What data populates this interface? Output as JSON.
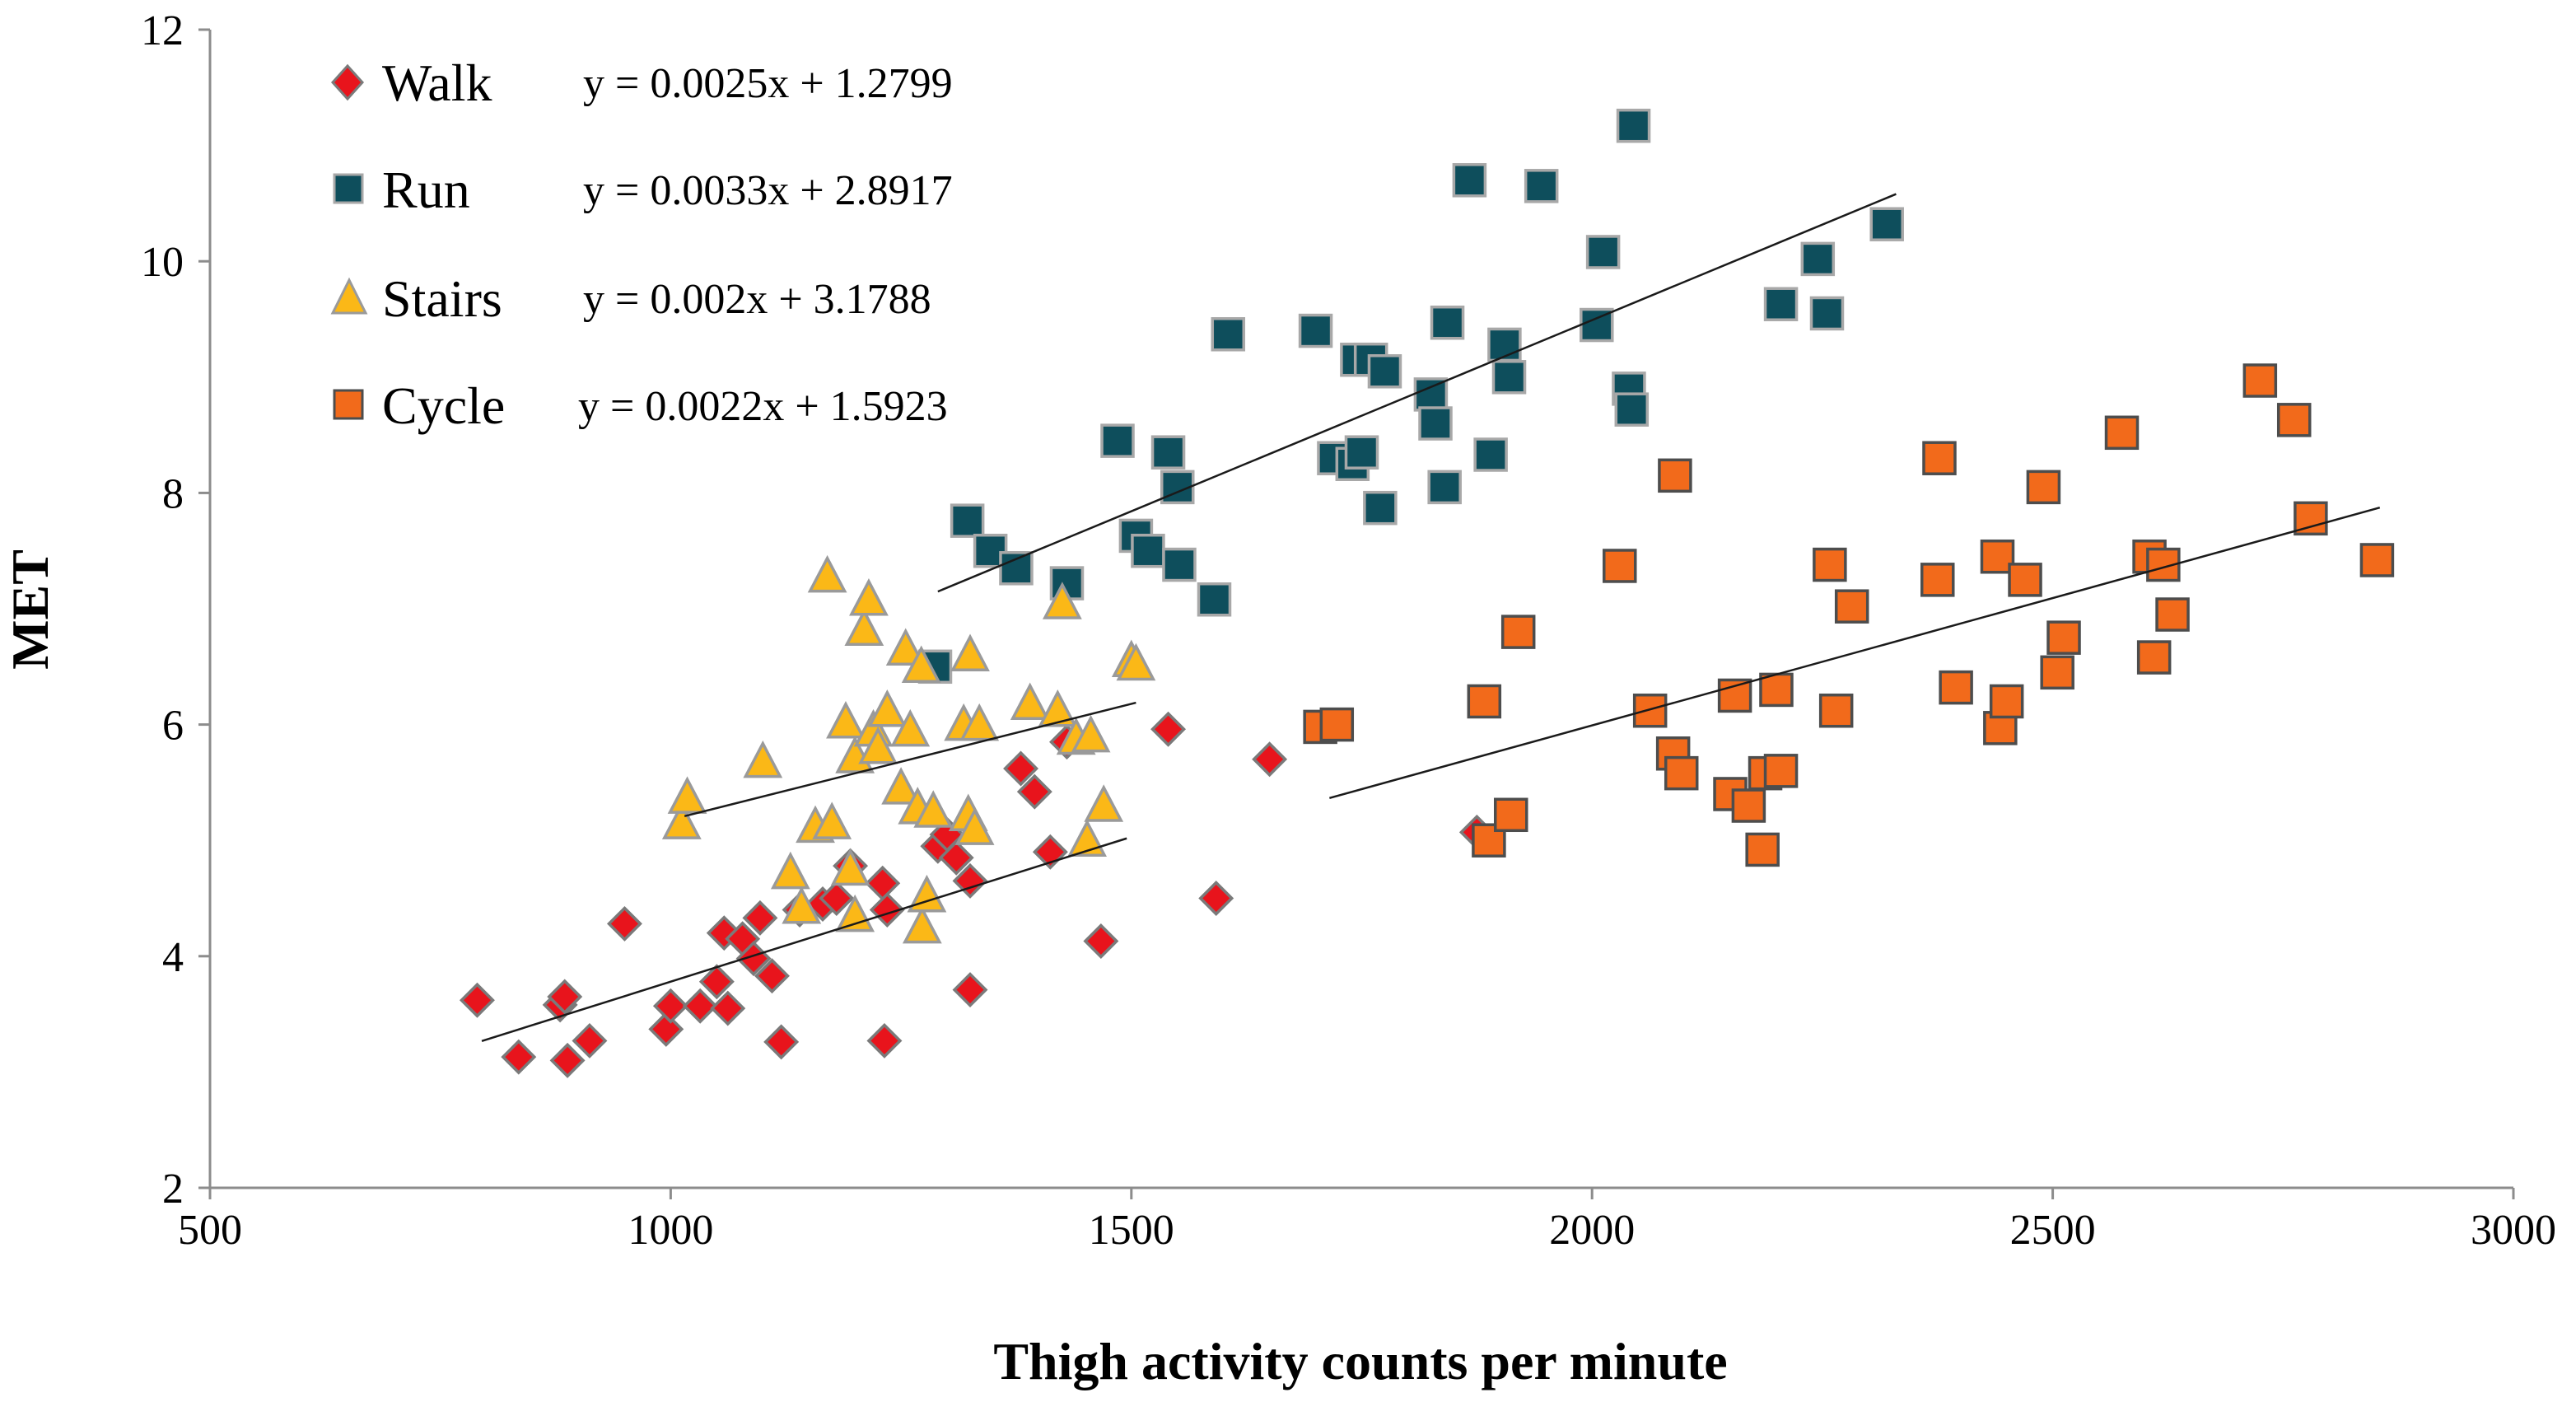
{
  "chart_data": {
    "type": "scatter",
    "title": "",
    "xlabel": "Thigh activity counts per minute",
    "ylabel": "MET",
    "xlim": [
      500,
      3000
    ],
    "ylim": [
      2,
      12
    ],
    "xticks": [
      500,
      1000,
      1500,
      2000,
      2500,
      3000
    ],
    "yticks": [
      2,
      4,
      6,
      8,
      10,
      12
    ],
    "grid": false,
    "legend_position": "top-left",
    "series": [
      {
        "name": "Walk",
        "marker": "diamond",
        "color": "#e8141c",
        "stroke": "#7a7a7a",
        "equation": "y = 0.0025x + 1.2799",
        "slope": 0.0025,
        "intercept": 1.2799,
        "fit_range": [
          795,
          1495
        ],
        "points": [
          [
            790,
            3.62
          ],
          [
            835,
            3.13
          ],
          [
            880,
            3.58
          ],
          [
            885,
            3.65
          ],
          [
            888,
            3.1
          ],
          [
            912,
            3.27
          ],
          [
            950,
            4.28
          ],
          [
            995,
            3.37
          ],
          [
            1000,
            3.57
          ],
          [
            1032,
            3.57
          ],
          [
            1050,
            3.78
          ],
          [
            1058,
            4.2
          ],
          [
            1062,
            3.55
          ],
          [
            1078,
            4.15
          ],
          [
            1090,
            3.98
          ],
          [
            1097,
            4.33
          ],
          [
            1110,
            3.83
          ],
          [
            1120,
            3.26
          ],
          [
            1140,
            4.4
          ],
          [
            1165,
            4.45
          ],
          [
            1180,
            4.5
          ],
          [
            1195,
            4.78
          ],
          [
            1230,
            4.63
          ],
          [
            1235,
            4.4
          ],
          [
            1232,
            3.27
          ],
          [
            1290,
            4.95
          ],
          [
            1300,
            5.05
          ],
          [
            1310,
            4.85
          ],
          [
            1325,
            4.65
          ],
          [
            1325,
            3.71
          ],
          [
            1380,
            5.62
          ],
          [
            1395,
            5.42
          ],
          [
            1412,
            4.9
          ],
          [
            1430,
            5.85
          ],
          [
            1467,
            4.13
          ],
          [
            1540,
            5.96
          ],
          [
            1592,
            4.5
          ],
          [
            1650,
            5.7
          ],
          [
            1875,
            5.07
          ]
        ]
      },
      {
        "name": "Run",
        "marker": "square",
        "color": "#0e4e5c",
        "stroke": "#a8a8a8",
        "equation": "y = 0.0033x + 2.8917",
        "slope": 0.0033,
        "intercept": 2.8917,
        "fit_range": [
          1290,
          2330
        ],
        "points": [
          [
            1287,
            6.5
          ],
          [
            1322,
            7.76
          ],
          [
            1347,
            7.5
          ],
          [
            1375,
            7.35
          ],
          [
            1430,
            7.22
          ],
          [
            1485,
            8.45
          ],
          [
            1505,
            7.63
          ],
          [
            1518,
            7.5
          ],
          [
            1540,
            8.35
          ],
          [
            1550,
            8.05
          ],
          [
            1552,
            7.38
          ],
          [
            1590,
            7.08
          ],
          [
            1605,
            9.37
          ],
          [
            1700,
            9.4
          ],
          [
            1720,
            8.3
          ],
          [
            1740,
            8.25
          ],
          [
            1745,
            9.15
          ],
          [
            1750,
            8.35
          ],
          [
            1760,
            9.15
          ],
          [
            1770,
            7.87
          ],
          [
            1775,
            9.05
          ],
          [
            1825,
            8.85
          ],
          [
            1830,
            8.6
          ],
          [
            1840,
            8.05
          ],
          [
            1843,
            9.47
          ],
          [
            1867,
            10.7
          ],
          [
            1890,
            8.33
          ],
          [
            1905,
            9.28
          ],
          [
            1910,
            9.0
          ],
          [
            1945,
            10.65
          ],
          [
            2005,
            9.45
          ],
          [
            2012,
            10.08
          ],
          [
            2040,
            8.9
          ],
          [
            2043,
            8.72
          ],
          [
            2045,
            11.17
          ],
          [
            2205,
            9.63
          ],
          [
            2245,
            10.02
          ],
          [
            2255,
            9.55
          ],
          [
            2320,
            10.32
          ]
        ]
      },
      {
        "name": "Stairs",
        "marker": "triangle",
        "color": "#fbb817",
        "stroke": "#9a9a9a",
        "equation": "y = 0.002x + 3.1788",
        "slope": 0.002,
        "intercept": 3.1788,
        "fit_range": [
          1015,
          1505
        ],
        "points": [
          [
            1012,
            5.15
          ],
          [
            1018,
            5.37
          ],
          [
            1100,
            5.68
          ],
          [
            1130,
            4.72
          ],
          [
            1142,
            4.42
          ],
          [
            1157,
            5.12
          ],
          [
            1170,
            7.28
          ],
          [
            1175,
            5.15
          ],
          [
            1195,
            4.75
          ],
          [
            1190,
            6.02
          ],
          [
            1200,
            5.72
          ],
          [
            1200,
            4.35
          ],
          [
            1210,
            6.82
          ],
          [
            1215,
            7.08
          ],
          [
            1220,
            5.95
          ],
          [
            1225,
            5.8
          ],
          [
            1235,
            6.12
          ],
          [
            1250,
            5.45
          ],
          [
            1255,
            6.65
          ],
          [
            1260,
            5.95
          ],
          [
            1268,
            5.28
          ],
          [
            1272,
            6.5
          ],
          [
            1273,
            4.25
          ],
          [
            1278,
            4.52
          ],
          [
            1285,
            5.25
          ],
          [
            1318,
            6.0
          ],
          [
            1323,
            5.22
          ],
          [
            1325,
            6.6
          ],
          [
            1330,
            5.1
          ],
          [
            1335,
            6.0
          ],
          [
            1390,
            6.18
          ],
          [
            1420,
            6.12
          ],
          [
            1425,
            7.05
          ],
          [
            1440,
            5.88
          ],
          [
            1452,
            5.0
          ],
          [
            1456,
            5.9
          ],
          [
            1470,
            5.3
          ],
          [
            1500,
            6.55
          ],
          [
            1505,
            6.52
          ]
        ]
      },
      {
        "name": "Cycle",
        "marker": "square",
        "color": "#f26a1b",
        "stroke": "#4d4d4d",
        "equation": "y = 0.0022x + 1.5923",
        "slope": 0.0022,
        "intercept": 1.5923,
        "fit_range": [
          1715,
          2855
        ],
        "points": [
          [
            1705,
            5.98
          ],
          [
            1723,
            6.0
          ],
          [
            1883,
            6.2
          ],
          [
            1888,
            5.0
          ],
          [
            1912,
            5.22
          ],
          [
            1920,
            6.8
          ],
          [
            2030,
            7.37
          ],
          [
            2063,
            6.12
          ],
          [
            2088,
            5.75
          ],
          [
            2090,
            8.15
          ],
          [
            2097,
            5.58
          ],
          [
            2150,
            5.4
          ],
          [
            2155,
            6.25
          ],
          [
            2170,
            5.3
          ],
          [
            2185,
            4.92
          ],
          [
            2188,
            5.58
          ],
          [
            2200,
            6.3
          ],
          [
            2205,
            5.6
          ],
          [
            2258,
            7.38
          ],
          [
            2265,
            6.12
          ],
          [
            2282,
            7.02
          ],
          [
            2375,
            7.25
          ],
          [
            2377,
            8.3
          ],
          [
            2395,
            6.32
          ],
          [
            2440,
            7.45
          ],
          [
            2443,
            5.97
          ],
          [
            2450,
            6.2
          ],
          [
            2470,
            7.25
          ],
          [
            2490,
            8.05
          ],
          [
            2505,
            6.45
          ],
          [
            2512,
            6.75
          ],
          [
            2575,
            8.52
          ],
          [
            2605,
            7.45
          ],
          [
            2610,
            6.58
          ],
          [
            2620,
            7.38
          ],
          [
            2630,
            6.95
          ],
          [
            2725,
            8.97
          ],
          [
            2762,
            8.63
          ],
          [
            2780,
            7.78
          ],
          [
            2852,
            7.42
          ]
        ]
      }
    ]
  }
}
